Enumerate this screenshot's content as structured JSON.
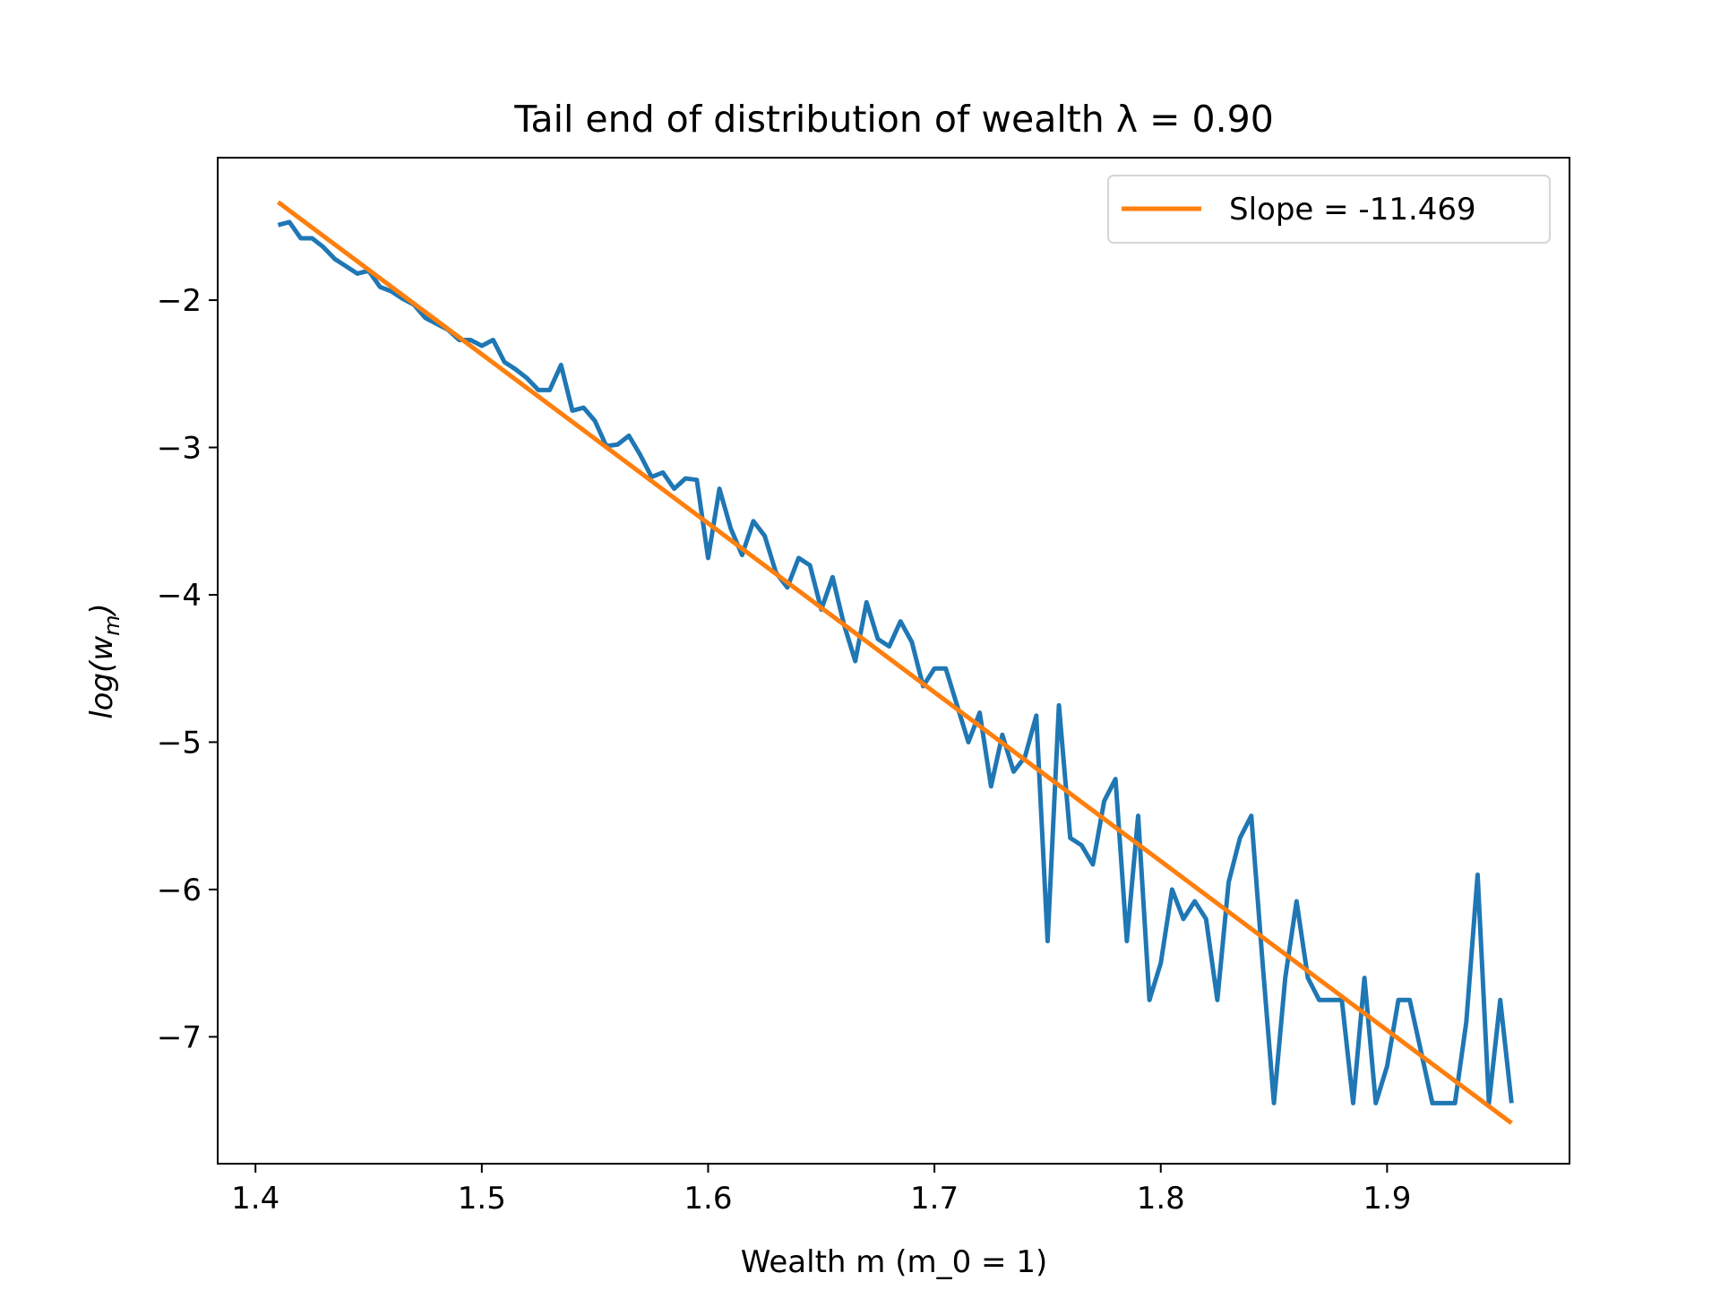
{
  "chart_data": {
    "type": "line",
    "title": "Tail end of distribution of wealth λ = 0.90",
    "xlabel": "Wealth m (m_0 = 1)",
    "ylabel": [
      "log(w",
      "m",
      ")"
    ],
    "xlim": [
      1.3833,
      1.9806
    ],
    "ylim": [
      -7.861,
      -1.033
    ],
    "xticks": [
      1.4,
      1.5,
      1.6,
      1.7,
      1.8,
      1.9
    ],
    "yticks": [
      {
        "value": -2,
        "label": "−2"
      },
      {
        "value": -3,
        "label": "−3"
      },
      {
        "value": -4,
        "label": "−4"
      },
      {
        "value": -5,
        "label": "−5"
      },
      {
        "value": -6,
        "label": "−6"
      },
      {
        "value": -7,
        "label": "−7"
      }
    ],
    "legend": "upper right",
    "series": [
      {
        "color": "#1f77b4",
        "x": [
          1.41,
          1.415,
          1.42,
          1.425,
          1.43,
          1.435,
          1.44,
          1.445,
          1.45,
          1.455,
          1.46,
          1.465,
          1.47,
          1.475,
          1.48,
          1.485,
          1.49,
          1.495,
          1.5,
          1.505,
          1.51,
          1.515,
          1.52,
          1.525,
          1.53,
          1.535,
          1.54,
          1.545,
          1.55,
          1.555,
          1.56,
          1.565,
          1.57,
          1.575,
          1.58,
          1.585,
          1.59,
          1.595,
          1.6,
          1.605,
          1.61,
          1.615,
          1.62,
          1.625,
          1.63,
          1.635,
          1.64,
          1.645,
          1.65,
          1.655,
          1.66,
          1.665,
          1.67,
          1.675,
          1.68,
          1.685,
          1.69,
          1.695,
          1.7,
          1.705,
          1.71,
          1.715,
          1.72,
          1.725,
          1.73,
          1.735,
          1.74,
          1.745,
          1.75,
          1.755,
          1.76,
          1.765,
          1.77,
          1.775,
          1.78,
          1.785,
          1.79,
          1.795,
          1.8,
          1.805,
          1.81,
          1.815,
          1.82,
          1.825,
          1.83,
          1.835,
          1.84,
          1.845,
          1.85,
          1.855,
          1.86,
          1.865,
          1.87,
          1.875,
          1.88,
          1.885,
          1.89,
          1.895,
          1.9,
          1.905,
          1.91,
          1.915,
          1.92,
          1.925,
          1.93,
          1.935,
          1.94,
          1.945,
          1.95,
          1.955
        ],
        "values": [
          -1.49,
          -1.47,
          -1.58,
          -1.58,
          -1.64,
          -1.72,
          -1.77,
          -1.82,
          -1.8,
          -1.91,
          -1.94,
          -1.99,
          -2.03,
          -2.12,
          -2.16,
          -2.2,
          -2.27,
          -2.27,
          -2.31,
          -2.27,
          -2.42,
          -2.47,
          -2.53,
          -2.61,
          -2.61,
          -2.44,
          -2.75,
          -2.73,
          -2.82,
          -2.99,
          -2.98,
          -2.92,
          -3.05,
          -3.2,
          -3.17,
          -3.28,
          -3.21,
          -3.22,
          -3.75,
          -3.28,
          -3.55,
          -3.73,
          -3.5,
          -3.6,
          -3.85,
          -3.95,
          -3.75,
          -3.8,
          -4.1,
          -3.88,
          -4.2,
          -4.45,
          -4.05,
          -4.3,
          -4.35,
          -4.18,
          -4.32,
          -4.62,
          -4.5,
          -4.5,
          -4.75,
          -5.0,
          -4.8,
          -5.3,
          -4.95,
          -5.2,
          -5.1,
          -4.82,
          -6.35,
          -4.75,
          -5.65,
          -5.7,
          -5.83,
          -5.4,
          -5.25,
          -6.35,
          -5.5,
          -6.75,
          -6.5,
          -6.0,
          -6.2,
          -6.08,
          -6.2,
          -6.75,
          -5.95,
          -5.65,
          -5.5,
          -6.5,
          -7.45,
          -6.6,
          -6.08,
          -6.6,
          -6.75,
          -6.75,
          -6.75,
          -7.45,
          -6.6,
          -7.45,
          -7.2,
          -6.75,
          -6.75,
          -7.1,
          -7.45,
          -7.45,
          -7.45,
          -6.9,
          -5.9,
          -7.45,
          -6.75,
          -7.45
        ]
      },
      {
        "name": "Slope = -11.469",
        "color": "#ff7f0e",
        "x": [
          1.41,
          1.955
        ],
        "values": [
          -1.335,
          -7.586
        ]
      }
    ]
  }
}
